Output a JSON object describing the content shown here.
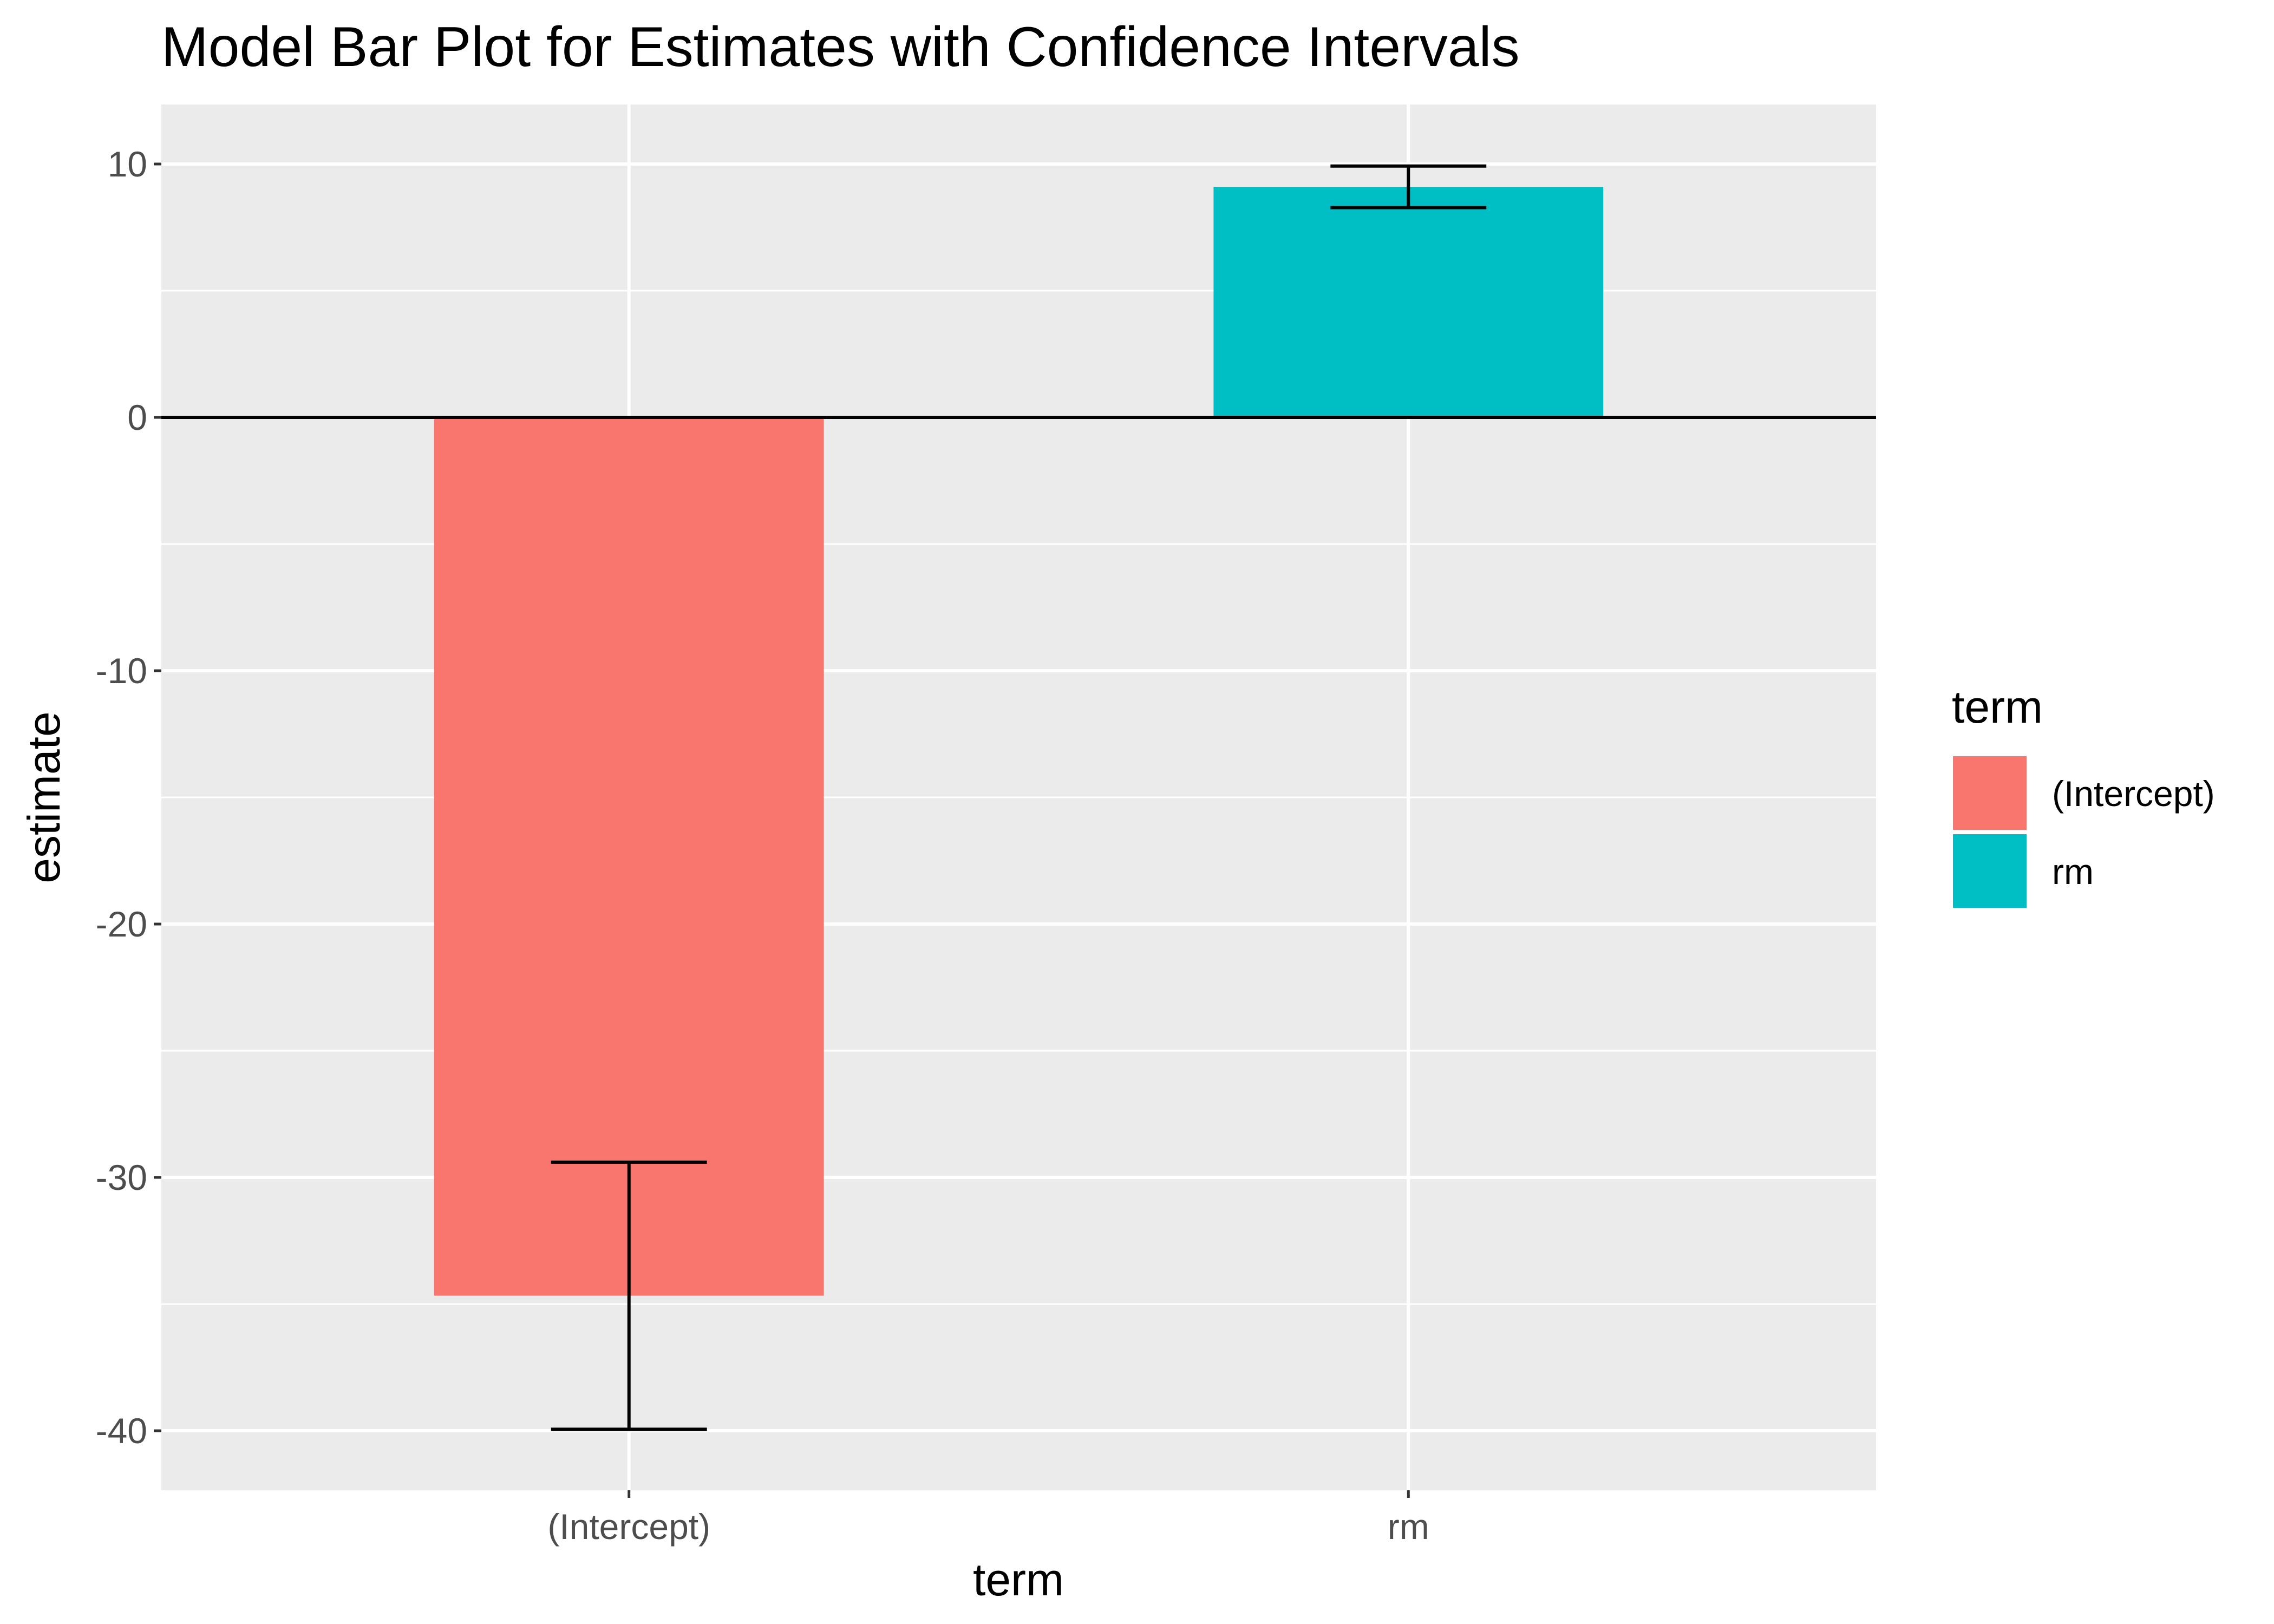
{
  "chart_data": {
    "type": "bar",
    "title": "Model Bar Plot for Estimates with Confidence Intervals",
    "xlabel": "term",
    "ylabel": "estimate",
    "categories": [
      "(Intercept)",
      "rm"
    ],
    "values": [
      -34.67,
      9.1
    ],
    "conf_low": [
      -39.94,
      8.28
    ],
    "conf_high": [
      -29.4,
      9.92
    ],
    "colors": [
      "#F8766D",
      "#00BFC4"
    ],
    "ylim": [
      -42.35,
      12.35
    ],
    "yticks": [
      -40,
      -30,
      -20,
      -10,
      0,
      10
    ],
    "ytick_labels": [
      "-40",
      "-30",
      "-20",
      "-10",
      "0",
      "10"
    ],
    "reference_line": 0,
    "grid": true,
    "background": "#EBEBEB",
    "legend": {
      "title": "term",
      "placement": "right",
      "entries": [
        "(Intercept)",
        "rm"
      ]
    }
  }
}
